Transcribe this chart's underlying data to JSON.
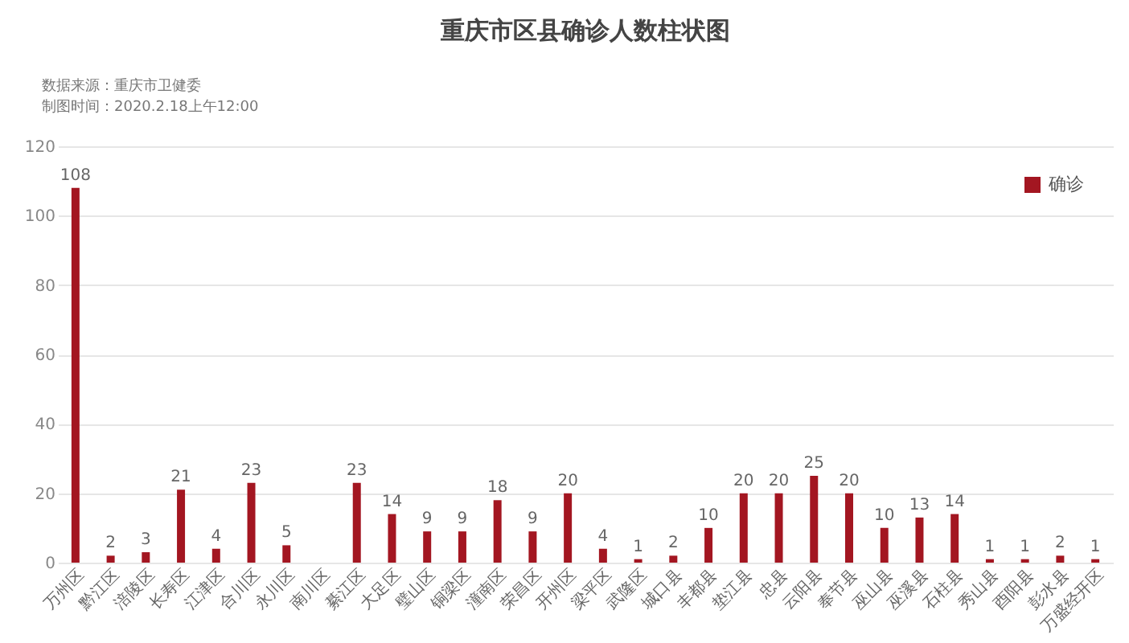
{
  "chart_data": {
    "type": "bar",
    "title": "重庆市区县确诊人数柱状图",
    "annotations": [
      "数据来源：重庆市卫健委",
      "制图时间：2020.2.18上午12:00"
    ],
    "categories": [
      "万州区",
      "黔江区",
      "涪陵区",
      "长寿区",
      "江津区",
      "合川区",
      "永川区",
      "南川区",
      "綦江区",
      "大足区",
      "璧山区",
      "铜梁区",
      "潼南区",
      "荣昌区",
      "开州区",
      "梁平区",
      "武隆区",
      "城口县",
      "丰都县",
      "垫江县",
      "忠县",
      "云阳县",
      "奉节县",
      "巫山县",
      "巫溪县",
      "石柱县",
      "秀山县",
      "酉阳县",
      "彭水县",
      "万盛经开区"
    ],
    "series": [
      {
        "name": "确诊",
        "color": "#a31621",
        "values": [
          108,
          2,
          3,
          21,
          4,
          23,
          5,
          null,
          23,
          14,
          9,
          9,
          18,
          9,
          20,
          4,
          1,
          2,
          10,
          20,
          20,
          25,
          20,
          10,
          13,
          14,
          1,
          1,
          2,
          1
        ]
      }
    ],
    "data_labels": true,
    "ylim": [
      0,
      120
    ],
    "yticks": [
      0,
      20,
      40,
      60,
      80,
      100,
      120
    ],
    "grid": "y",
    "legend": "top right"
  }
}
